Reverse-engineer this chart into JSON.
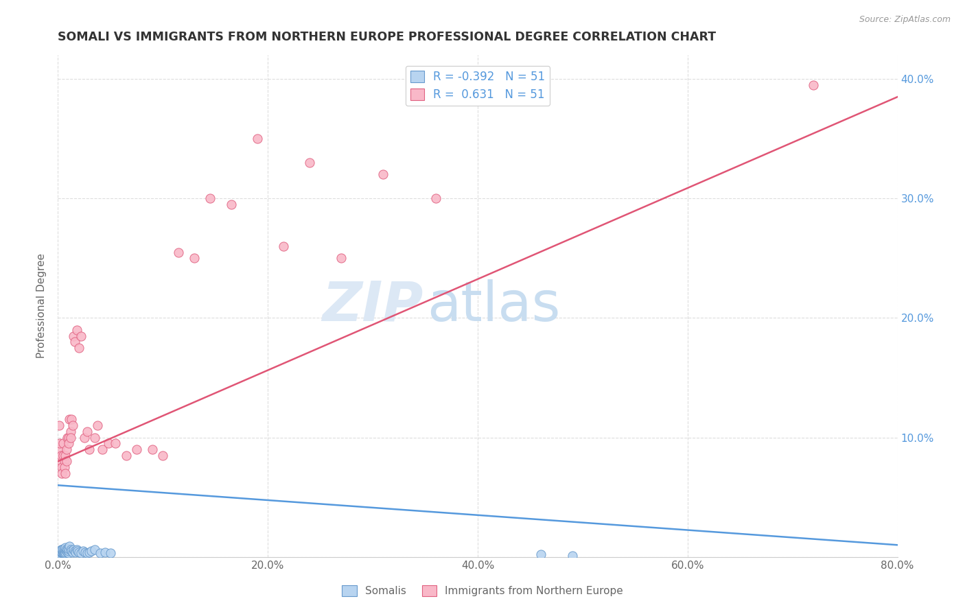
{
  "title": "SOMALI VS IMMIGRANTS FROM NORTHERN EUROPE PROFESSIONAL DEGREE CORRELATION CHART",
  "source": "Source: ZipAtlas.com",
  "ylabel": "Professional Degree",
  "xlim": [
    0.0,
    0.8
  ],
  "ylim": [
    0.0,
    0.42
  ],
  "x_ticks": [
    0.0,
    0.2,
    0.4,
    0.6,
    0.8
  ],
  "y_ticks": [
    0.0,
    0.1,
    0.2,
    0.3,
    0.4
  ],
  "x_tick_labels": [
    "0.0%",
    "20.0%",
    "40.0%",
    "60.0%",
    "80.0%"
  ],
  "y_tick_labels_right": [
    "",
    "10.0%",
    "20.0%",
    "30.0%",
    "40.0%"
  ],
  "somali_color": "#b8d4f0",
  "northern_europe_color": "#f9b8c8",
  "somali_edge_color": "#6699cc",
  "northern_europe_edge_color": "#e06080",
  "somali_line_color": "#5599dd",
  "northern_europe_line_color": "#e05575",
  "R_somali": -0.392,
  "R_northern": 0.631,
  "N_somali": 51,
  "N_northern": 51,
  "background_color": "#ffffff",
  "grid_color": "#dddddd",
  "title_color": "#333333",
  "axis_label_color": "#666666",
  "right_axis_color": "#5599dd",
  "watermark_zip": "ZIP",
  "watermark_atlas": "atlas",
  "watermark_color": "#dce8f5",
  "somali_scatter_x": [
    0.001,
    0.001,
    0.002,
    0.002,
    0.002,
    0.003,
    0.003,
    0.003,
    0.003,
    0.004,
    0.004,
    0.004,
    0.005,
    0.005,
    0.005,
    0.005,
    0.006,
    0.006,
    0.006,
    0.007,
    0.007,
    0.007,
    0.008,
    0.008,
    0.009,
    0.009,
    0.01,
    0.01,
    0.01,
    0.011,
    0.012,
    0.013,
    0.014,
    0.015,
    0.016,
    0.017,
    0.018,
    0.019,
    0.02,
    0.022,
    0.024,
    0.026,
    0.028,
    0.03,
    0.032,
    0.035,
    0.04,
    0.045,
    0.05,
    0.46,
    0.49
  ],
  "somali_scatter_y": [
    0.005,
    0.003,
    0.004,
    0.003,
    0.005,
    0.002,
    0.004,
    0.005,
    0.006,
    0.003,
    0.004,
    0.006,
    0.003,
    0.004,
    0.005,
    0.007,
    0.003,
    0.005,
    0.007,
    0.004,
    0.006,
    0.008,
    0.005,
    0.007,
    0.004,
    0.006,
    0.003,
    0.005,
    0.007,
    0.009,
    0.006,
    0.005,
    0.004,
    0.006,
    0.005,
    0.004,
    0.006,
    0.005,
    0.004,
    0.003,
    0.005,
    0.004,
    0.003,
    0.004,
    0.005,
    0.006,
    0.003,
    0.004,
    0.003,
    0.002,
    0.001
  ],
  "northern_scatter_x": [
    0.001,
    0.002,
    0.002,
    0.003,
    0.003,
    0.004,
    0.004,
    0.005,
    0.005,
    0.006,
    0.006,
    0.007,
    0.007,
    0.008,
    0.008,
    0.009,
    0.01,
    0.01,
    0.011,
    0.012,
    0.012,
    0.013,
    0.014,
    0.015,
    0.016,
    0.018,
    0.02,
    0.022,
    0.025,
    0.028,
    0.03,
    0.035,
    0.038,
    0.042,
    0.048,
    0.055,
    0.065,
    0.075,
    0.09,
    0.1,
    0.115,
    0.13,
    0.145,
    0.165,
    0.19,
    0.215,
    0.24,
    0.27,
    0.31,
    0.36,
    0.72
  ],
  "northern_scatter_y": [
    0.11,
    0.09,
    0.095,
    0.08,
    0.085,
    0.075,
    0.07,
    0.085,
    0.095,
    0.08,
    0.075,
    0.07,
    0.085,
    0.09,
    0.08,
    0.1,
    0.1,
    0.095,
    0.115,
    0.105,
    0.1,
    0.115,
    0.11,
    0.185,
    0.18,
    0.19,
    0.175,
    0.185,
    0.1,
    0.105,
    0.09,
    0.1,
    0.11,
    0.09,
    0.095,
    0.095,
    0.085,
    0.09,
    0.09,
    0.085,
    0.255,
    0.25,
    0.3,
    0.295,
    0.35,
    0.26,
    0.33,
    0.25,
    0.32,
    0.3,
    0.395
  ],
  "somali_line_x": [
    0.0,
    0.8
  ],
  "somali_line_y": [
    0.06,
    0.01
  ],
  "northern_line_x": [
    0.0,
    0.8
  ],
  "northern_line_y": [
    0.08,
    0.385
  ]
}
